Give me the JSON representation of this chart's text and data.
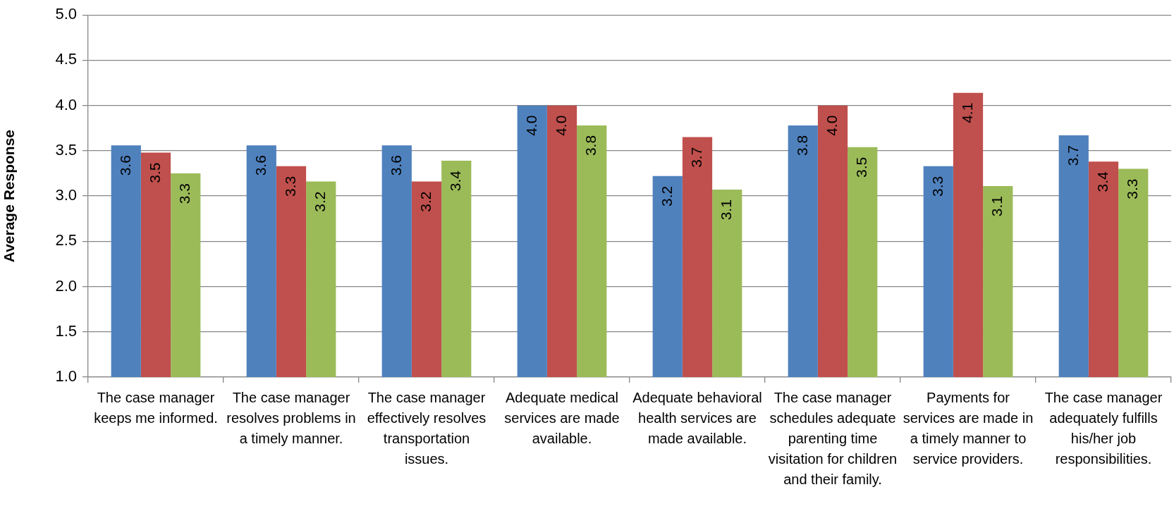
{
  "chart_data": {
    "type": "bar",
    "ylabel": "Average Response",
    "categories": [
      "The case manager keeps me informed.",
      "The case manager resolves problems in a timely manner.",
      "The case manager effectively resolves transportation issues.",
      "Adequate medical services are made available.",
      "Adequate behavioral health services are made available.",
      "The case manager schedules adequate parenting time visitation for children and their family.",
      "Payments for services are made in a timely manner to service providers.",
      "The case manager adequately fulfills his/her job responsibilities."
    ],
    "series": [
      {
        "color": "#4f81bd",
        "values": [
          3.56,
          3.56,
          3.56,
          4.0,
          3.22,
          3.78,
          3.33,
          3.67
        ],
        "value_labels": [
          "3.6",
          "3.6",
          "3.6",
          "4.0",
          "3.2",
          "3.8",
          "3.3",
          "3.7"
        ]
      },
      {
        "color": "#c0504d",
        "values": [
          3.48,
          3.33,
          3.16,
          4.0,
          3.65,
          4.0,
          4.14,
          3.38
        ],
        "value_labels": [
          "3.5",
          "3.3",
          "3.2",
          "4.0",
          "3.7",
          "4.0",
          "4.1",
          "3.4"
        ]
      },
      {
        "color": "#9bbb59",
        "values": [
          3.25,
          3.16,
          3.39,
          3.78,
          3.07,
          3.54,
          3.11,
          3.3
        ],
        "value_labels": [
          "3.3",
          "3.2",
          "3.4",
          "3.8",
          "3.1",
          "3.5",
          "3.1",
          "3.3"
        ]
      }
    ],
    "ylim": [
      1.0,
      5.0
    ],
    "yticks": [
      {
        "value": 1,
        "label": "1.0"
      },
      1.5,
      {
        "value": 2,
        "label": "2.0"
      },
      2.5,
      {
        "value": 3,
        "label": "3.0"
      },
      3.5,
      {
        "value": 4,
        "label": "4.0"
      },
      4.5,
      {
        "value": 5,
        "label": "5.0"
      }
    ],
    "grid": "y",
    "legend": false
  }
}
